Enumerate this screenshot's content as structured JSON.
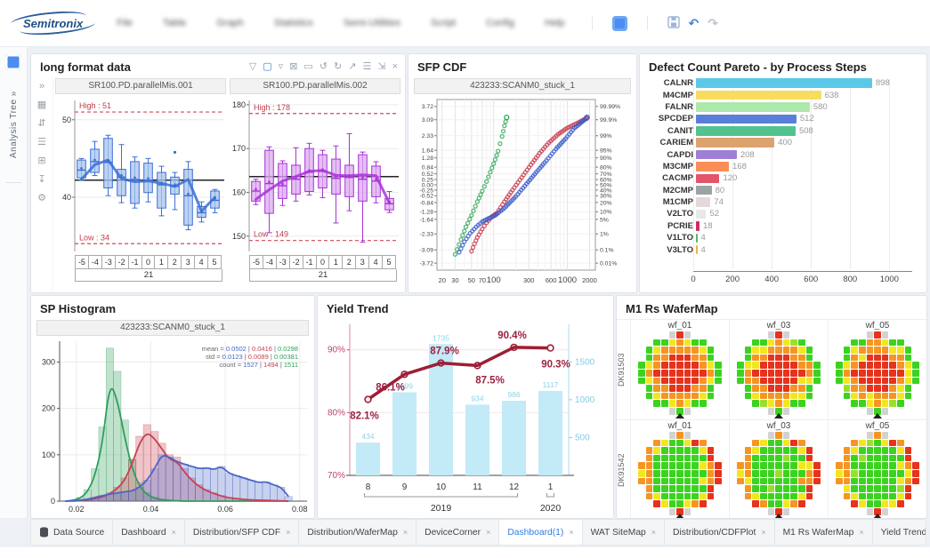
{
  "topbar": {
    "logo": "Semitronix",
    "menu_items": [
      "File",
      "Table",
      "Graph",
      "Statistics",
      "Semi-Utilities",
      "Script",
      "Config",
      "Help"
    ],
    "actions": [
      {
        "name": "app-button",
        "type": "app"
      },
      {
        "name": "save-button",
        "type": "save"
      },
      {
        "name": "undo-button",
        "type": "glyph",
        "glyph": "↶"
      },
      {
        "name": "redo-button",
        "type": "glyph",
        "glyph": "↷"
      }
    ]
  },
  "sidebar": {
    "label": "Analysis Tree",
    "chevron": "»"
  },
  "rail_icons": [
    {
      "name": "collapse-icon",
      "glyph": "»"
    },
    {
      "name": "dashboard-icon",
      "glyph": "▦"
    },
    {
      "name": "sliders-icon",
      "glyph": "⇵"
    },
    {
      "name": "list-icon",
      "glyph": "☰"
    },
    {
      "name": "copy-icon",
      "glyph": "⊞"
    },
    {
      "name": "download-icon",
      "glyph": "↧"
    },
    {
      "name": "settings-icon",
      "glyph": "⚙"
    }
  ],
  "header_icons": [
    {
      "name": "filter-icon",
      "glyph": "▽",
      "active": false
    },
    {
      "name": "box-select-icon",
      "glyph": "▢",
      "active": true
    },
    {
      "name": "lasso-icon",
      "glyph": "▿",
      "active": false
    },
    {
      "name": "clear-selection-icon",
      "glyph": "⊠",
      "active": false
    },
    {
      "name": "rect-zoom-icon",
      "glyph": "▭",
      "active": false
    },
    {
      "name": "rotate-left-icon",
      "glyph": "↺",
      "active": false
    },
    {
      "name": "rotate-right-icon",
      "glyph": "↻",
      "active": false
    },
    {
      "name": "open-icon",
      "glyph": "↗",
      "active": false
    },
    {
      "name": "list-icon",
      "glyph": "☰",
      "active": false
    },
    {
      "name": "expand-icon",
      "glyph": "⇲",
      "active": false
    },
    {
      "name": "close-icon",
      "glyph": "×",
      "active": false
    }
  ],
  "panels": {
    "long_format": {
      "title": "long format data"
    },
    "sfp_cdf": {
      "title": "SFP CDF"
    },
    "pareto": {
      "title": "Defect Count Pareto - by Process Steps"
    },
    "histogram": {
      "title": "SP Histogram"
    },
    "yield": {
      "title": "Yield Trend"
    },
    "wafermap": {
      "title": "M1 Rs WaferMap"
    }
  },
  "chart_data": [
    {
      "id": "box1",
      "type": "boxplot",
      "title": "SR100.PD.parallelMis.001",
      "categories": [
        -5,
        -4,
        -3,
        -2,
        -1,
        0,
        1,
        2,
        3,
        4,
        5
      ],
      "group_label": "21",
      "high": 51,
      "low": 34,
      "mean": 42.2,
      "ylim": [
        33,
        52.5
      ],
      "yticks": [
        40,
        50
      ],
      "color": "#3b6fd4",
      "fill": "#a8c4ee",
      "boxes": [
        {
          "q1": 42.5,
          "q3": 44.8,
          "lo": 42.2,
          "hi": 45.0,
          "med": 43.5
        },
        {
          "q1": 43.2,
          "q3": 46.2,
          "lo": 42.8,
          "hi": 47.2,
          "med": 44.6
        },
        {
          "q1": 41.2,
          "q3": 47.6,
          "lo": 40.2,
          "hi": 48.0,
          "med": 44.5
        },
        {
          "q1": 40.2,
          "q3": 43.6,
          "lo": 39.3,
          "hi": 46.8,
          "med": 42.6
        },
        {
          "q1": 39.2,
          "q3": 44.6,
          "lo": 38.6,
          "hi": 45.2,
          "med": 42.3
        },
        {
          "q1": 40.6,
          "q3": 44.4,
          "lo": 39.4,
          "hi": 45.0,
          "med": 42.2
        },
        {
          "q1": 38.6,
          "q3": 43.2,
          "lo": 37.6,
          "hi": 44.0,
          "med": 41.6
        },
        {
          "q1": 40.4,
          "q3": 42.6,
          "lo": 38.4,
          "hi": 43.2,
          "med": 41.4,
          "out": [
            45.8
          ]
        },
        {
          "q1": 36.4,
          "q3": 43.6,
          "lo": 35.8,
          "hi": 44.6,
          "med": 40.2
        },
        {
          "q1": 37.4,
          "q3": 38.8,
          "lo": 36.8,
          "hi": 39.4,
          "med": 38.0
        },
        {
          "q1": 38.6,
          "q3": 40.8,
          "lo": 38.0,
          "hi": 41.0,
          "med": 39.6
        }
      ],
      "trend": [
        42.3,
        44.2,
        44.8,
        42.4,
        42.0,
        42.1,
        41.8,
        41.4,
        42.3,
        38.2,
        40.0
      ]
    },
    {
      "id": "box2",
      "type": "boxplot",
      "title": "SR100.PD.parallelMis.002",
      "categories": [
        -5,
        -4,
        -3,
        -2,
        -1,
        0,
        1,
        2,
        3,
        4,
        5
      ],
      "group_label": "21",
      "high": 178,
      "low": 149,
      "mean": 163.6,
      "ylim": [
        146.5,
        181
      ],
      "yticks": [
        150,
        160,
        170,
        180
      ],
      "color": "#a832d8",
      "fill": "#dcaaf0",
      "boxes": [
        {
          "q1": 158.0,
          "q3": 162.5,
          "lo": 157.2,
          "hi": 163.0,
          "med": 160.3
        },
        {
          "q1": 155.2,
          "q3": 169.6,
          "lo": 150.8,
          "hi": 170.4,
          "med": 162.0
        },
        {
          "q1": 158.6,
          "q3": 166.6,
          "lo": 157.0,
          "hi": 167.2,
          "med": 161.5
        },
        {
          "q1": 159.6,
          "q3": 166.2,
          "lo": 158.0,
          "hi": 170.2,
          "med": 163.0
        },
        {
          "q1": 160.2,
          "q3": 170.0,
          "lo": 159.4,
          "hi": 171.2,
          "med": 164.6
        },
        {
          "q1": 161.0,
          "q3": 168.6,
          "lo": 158.8,
          "hi": 169.6,
          "med": 164.8
        },
        {
          "q1": 159.6,
          "q3": 167.6,
          "lo": 153.0,
          "hi": 170.6,
          "med": 163.2
        },
        {
          "q1": 159.0,
          "q3": 166.2,
          "lo": 155.8,
          "hi": 173.4,
          "med": 163.4
        },
        {
          "q1": 158.0,
          "q3": 168.6,
          "lo": 148.6,
          "hi": 169.2,
          "med": 163.0
        },
        {
          "q1": 159.0,
          "q3": 166.0,
          "lo": 157.6,
          "hi": 167.0,
          "med": 162.6
        },
        {
          "q1": 156.0,
          "q3": 158.6,
          "lo": 155.4,
          "hi": 160.2,
          "med": 157.4
        }
      ],
      "trend": [
        158.4,
        160.6,
        162.6,
        163.6,
        164.8,
        165.0,
        163.9,
        163.8,
        164.0,
        163.8,
        157.6
      ]
    },
    {
      "id": "cdf",
      "type": "cdf",
      "title": "423233:SCANM0_stuck_1",
      "xlim": [
        17,
        2400
      ],
      "slim": [
        -4.05,
        4.05
      ],
      "x_ticks": [
        20,
        30,
        50,
        70,
        100,
        300,
        600,
        1000,
        2000
      ],
      "x_minor": [
        40,
        60,
        80,
        90,
        200,
        400,
        500,
        700,
        800,
        900
      ],
      "sigma_ticks": [
        3.72,
        3.09,
        2.33,
        1.64,
        1.28,
        0.84,
        0.52,
        0.25,
        0.0,
        -0.25,
        -0.52,
        -0.84,
        -1.28,
        -1.64,
        -2.33,
        -3.09,
        -3.72
      ],
      "pct_ticks": [
        "99.99%",
        "99.9%",
        "99%",
        "95%",
        "90%",
        "80%",
        "70%",
        "60%",
        "50%",
        "40%",
        "30%",
        "20%",
        "10%",
        "5%",
        "1%",
        "0.1%",
        "0.01%"
      ],
      "series": [
        {
          "name": "green",
          "color": "#2aa854",
          "points": [
            [
              30,
              -3.3
            ],
            [
              36,
              -2.6
            ],
            [
              42,
              -2.0
            ],
            [
              50,
              -1.45
            ],
            [
              60,
              -0.8
            ],
            [
              70,
              -0.3
            ],
            [
              80,
              0.15
            ],
            [
              90,
              0.6
            ],
            [
              100,
              1.0
            ],
            [
              115,
              1.6
            ],
            [
              130,
              2.3
            ],
            [
              140,
              2.8
            ],
            [
              150,
              3.2
            ]
          ]
        },
        {
          "name": "red",
          "color": "#c93a4c",
          "points": [
            [
              50,
              -3.15
            ],
            [
              55,
              -2.8
            ],
            [
              60,
              -2.5
            ],
            [
              70,
              -2.1
            ],
            [
              80,
              -1.8
            ],
            [
              95,
              -1.5
            ],
            [
              110,
              -1.35
            ],
            [
              140,
              -0.8
            ],
            [
              180,
              -0.25
            ],
            [
              240,
              0.35
            ],
            [
              320,
              0.95
            ],
            [
              420,
              1.5
            ],
            [
              560,
              2.0
            ],
            [
              750,
              2.4
            ],
            [
              1000,
              2.7
            ],
            [
              1400,
              2.95
            ],
            [
              1800,
              3.15
            ]
          ]
        },
        {
          "name": "blue",
          "color": "#3a5bc9",
          "points": [
            [
              34,
              -3.2
            ],
            [
              40,
              -2.7
            ],
            [
              48,
              -2.3
            ],
            [
              58,
              -2.0
            ],
            [
              70,
              -1.75
            ],
            [
              85,
              -1.6
            ],
            [
              105,
              -1.45
            ],
            [
              140,
              -1.1
            ],
            [
              200,
              -0.55
            ],
            [
              280,
              0.05
            ],
            [
              380,
              0.6
            ],
            [
              520,
              1.15
            ],
            [
              700,
              1.7
            ],
            [
              950,
              2.2
            ],
            [
              1250,
              2.7
            ],
            [
              1600,
              3.0
            ],
            [
              1850,
              3.2
            ]
          ]
        }
      ]
    },
    {
      "id": "pareto",
      "type": "pareto",
      "xmax": 1080,
      "xticks": [
        0,
        200,
        400,
        600,
        800,
        1000
      ],
      "items": [
        {
          "label": "CALNR",
          "value": 898,
          "color": "#5bc8e8"
        },
        {
          "label": "M4CMP",
          "value": 638,
          "color": "#f8dc60"
        },
        {
          "label": "FALNR",
          "value": 580,
          "color": "#aee8ac"
        },
        {
          "label": "SPCDEP",
          "value": 512,
          "color": "#5a7fd8"
        },
        {
          "label": "CANIT",
          "value": 508,
          "color": "#52c28e"
        },
        {
          "label": "CARIEM",
          "value": 400,
          "color": "#dca36e"
        },
        {
          "label": "CAPDI",
          "value": 208,
          "color": "#9f7fd4"
        },
        {
          "label": "M3CMP",
          "value": 168,
          "color": "#fb8e57"
        },
        {
          "label": "CACMP",
          "value": 120,
          "color": "#e4556c"
        },
        {
          "label": "M2CMP",
          "value": 80,
          "color": "#9aa4a4"
        },
        {
          "label": "M1CMP",
          "value": 74,
          "color": "#e3d9d9"
        },
        {
          "label": "V2LTO",
          "value": 52,
          "color": "#e9e7e7"
        },
        {
          "label": "PCRIE",
          "value": 18,
          "color": "#cf2d60"
        },
        {
          "label": "V1LTO",
          "value": 4,
          "color": "#59b85a"
        },
        {
          "label": "V3LTO",
          "value": 4,
          "color": "#efae50"
        }
      ]
    },
    {
      "id": "hist",
      "type": "histogram",
      "title": "423233:SCANM0_stuck_1",
      "bin_start": 0.016,
      "bin_width": 0.002,
      "xticks": [
        0.02,
        0.04,
        0.06,
        0.08
      ],
      "yticks": [
        0,
        100,
        200,
        300
      ],
      "ylim": [
        0,
        345
      ],
      "xlim": [
        0.0155,
        0.0815
      ],
      "stats": {
        "labels": [
          "mean",
          "std",
          "count"
        ],
        "mean": [
          "0.0502",
          "0.0416",
          "0.0298"
        ],
        "std": [
          "0.0123",
          "0.0089",
          "0.00381"
        ],
        "count": [
          "1527",
          "1494",
          "1511"
        ],
        "colors": [
          "#4a67c8",
          "#c64050",
          "#2f9e5a"
        ]
      },
      "series": [
        {
          "name": "green",
          "color": "#2f9e5a",
          "curve_scale": 0.78,
          "values": [
            0,
            2,
            8,
            25,
            70,
            160,
            330,
            280,
            175,
            90,
            40,
            18,
            8,
            4,
            2,
            1,
            0,
            0,
            0,
            0,
            0,
            0,
            0,
            0,
            0,
            0,
            0,
            0,
            0,
            0,
            0
          ]
        },
        {
          "name": "red",
          "color": "#c64050",
          "curve_scale": 0.9,
          "values": [
            0,
            0,
            1,
            3,
            6,
            10,
            18,
            30,
            50,
            90,
            140,
            165,
            150,
            125,
            100,
            95,
            70,
            50,
            35,
            25,
            18,
            12,
            8,
            6,
            4,
            3,
            2,
            2,
            1,
            1,
            0
          ]
        },
        {
          "name": "blue",
          "color": "#4a67c8",
          "curve_scale": 1.0,
          "values": [
            0,
            1,
            2,
            4,
            8,
            12,
            15,
            18,
            20,
            22,
            30,
            45,
            70,
            100,
            95,
            85,
            80,
            75,
            70,
            72,
            68,
            75,
            60,
            55,
            50,
            45,
            40,
            42,
            35,
            30,
            10
          ]
        }
      ]
    },
    {
      "id": "yield",
      "type": "combo",
      "categories": [
        "8",
        "9",
        "10",
        "11",
        "12",
        "1"
      ],
      "year_groups": [
        {
          "label": "2019",
          "from": 0,
          "to": 4
        },
        {
          "label": "2020",
          "from": 5,
          "to": 5
        }
      ],
      "bars": [
        434,
        1099,
        1735,
        934,
        986,
        1117
      ],
      "line": [
        82.1,
        86.1,
        87.9,
        87.5,
        90.4,
        90.3
      ],
      "line_labels": [
        "82.1%",
        "86.1%",
        "87.9%",
        "87.5%",
        "90.4%",
        "90.3%"
      ],
      "left_ticks": [
        70,
        80,
        90
      ],
      "left_tick_labels": [
        "70%",
        "80%",
        "90%"
      ],
      "right_ticks": [
        500,
        1000,
        1500
      ],
      "left_ylim": [
        70,
        93.5
      ],
      "right_ylim": [
        0,
        1950
      ],
      "bar_color": "#c3eaf7",
      "bar_label_color": "#8ed3ea",
      "line_color": "#9c1f35",
      "left_axis_color": "#c2436b",
      "right_axis_color": "#86cbe6"
    },
    {
      "id": "wafer",
      "type": "wafermap",
      "rows": [
        {
          "lot": "DK91503",
          "wafers": [
            "wf_01",
            "wf_03",
            "wf_05"
          ],
          "pattern": "hot"
        },
        {
          "lot": "DK91542",
          "wafers": [
            "wf_01",
            "wf_03",
            "wf_05"
          ],
          "pattern": "cool"
        }
      ],
      "palette": {
        "r": "#e7321c",
        "o": "#f59522",
        "y": "#f2e71f",
        "g": "#3bd31f",
        "l": "#9ae02a",
        "x": "#d2d2d2"
      },
      "patterns": {
        "hot": [
          "....xrx....",
          "..ggyoygg..",
          ".gyoooooyg.",
          ".goorrroog.",
          "gyorrrrroyg",
          "gorrrrrrrog",
          "gyorrrrroyg",
          ".goorrroog.",
          ".gyoooooyg.",
          "..ggyoygg..",
          "....xgx...."
        ],
        "cool": [
          "....xox....",
          "..oyggyro..",
          ".oygggggyr.",
          ".ogggggggr.",
          "ooggggggyor",
          "yogggggggor",
          "ooggggggyor",
          ".ogggggggr.",
          ".oygggggyr.",
          "..ryggyor..",
          "....xrx...."
        ]
      }
    }
  ],
  "tabs": {
    "items": [
      {
        "label": "Data Source",
        "icon": "database-icon",
        "closable": false,
        "active": false
      },
      {
        "label": "Dashboard",
        "closable": true,
        "active": false
      },
      {
        "label": "Distribution/SFP CDF",
        "closable": true,
        "active": false
      },
      {
        "label": "Distribution/WaferMap",
        "closable": true,
        "active": false
      },
      {
        "label": "DeviceCorner",
        "closable": true,
        "active": false
      },
      {
        "label": "Dashboard(1)",
        "closable": true,
        "active": true
      },
      {
        "label": "WAT SiteMap",
        "closable": true,
        "active": false
      },
      {
        "label": "Distribution/CDFPlot",
        "closable": true,
        "active": false
      },
      {
        "label": "M1 Rs WaferMap",
        "closable": true,
        "active": false
      },
      {
        "label": "Yield Trend",
        "closable": true,
        "active": false
      }
    ],
    "close_glyph": "×",
    "nav": [
      "‹",
      "›"
    ]
  }
}
